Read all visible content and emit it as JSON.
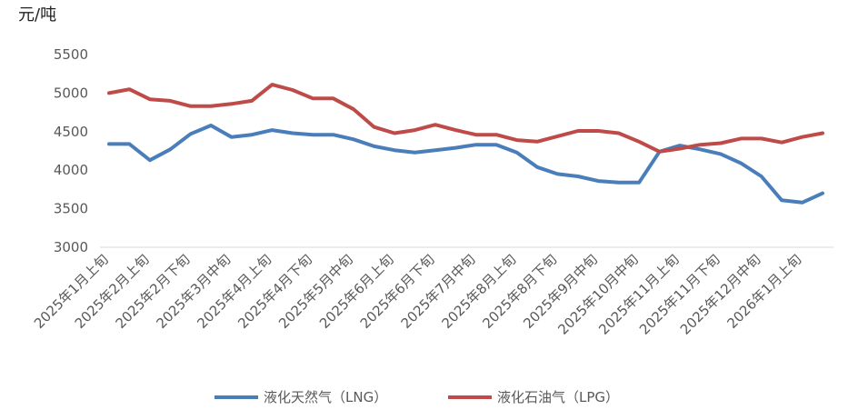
{
  "chart_data": {
    "type": "line",
    "y_axis_label": "元/吨",
    "categories": [
      "2025年1月上旬",
      null,
      "2025年2月上旬",
      null,
      "2025年2月下旬",
      null,
      "2025年3月中旬",
      null,
      "2025年4月上旬",
      null,
      "2025年4月下旬",
      null,
      "2025年5月中旬",
      null,
      "2025年6月上旬",
      null,
      "2025年6月下旬",
      null,
      "2025年7月中旬",
      null,
      "2025年8月上旬",
      null,
      "2025年8月下旬",
      null,
      "2025年9月中旬",
      null,
      "2025年10月中旬",
      null,
      "2025年11月上旬",
      null,
      "2025年11月下旬",
      null,
      "2025年12月中旬",
      null,
      "2026年1月上旬",
      null
    ],
    "series": [
      {
        "name": "液化天然气（LNG）",
        "color": "#4a7ebb",
        "values": [
          4340,
          4340,
          4130,
          4270,
          4470,
          4580,
          4430,
          4460,
          4520,
          4480,
          4460,
          4460,
          4400,
          4310,
          4260,
          4230,
          4260,
          4290,
          4330,
          4330,
          4230,
          4040,
          3950,
          3920,
          3860,
          3840,
          3840,
          4240,
          4320,
          4270,
          4210,
          4090,
          3920,
          3610,
          3580,
          3700
        ]
      },
      {
        "name": "液化石油气（LPG）",
        "color": "#be4b48",
        "values": [
          5000,
          5050,
          4920,
          4900,
          4830,
          4830,
          4860,
          4900,
          5110,
          5040,
          4930,
          4930,
          4790,
          4560,
          4480,
          4520,
          4590,
          4520,
          4460,
          4460,
          4390,
          4370,
          4440,
          4510,
          4510,
          4480,
          4370,
          4240,
          4280,
          4330,
          4350,
          4410,
          4410,
          4360,
          4430,
          4480
        ]
      }
    ],
    "ylim": [
      3000,
      5500
    ],
    "yticks": [
      3000,
      3500,
      4000,
      4500,
      5000,
      5500
    ],
    "legend": "bottom"
  }
}
